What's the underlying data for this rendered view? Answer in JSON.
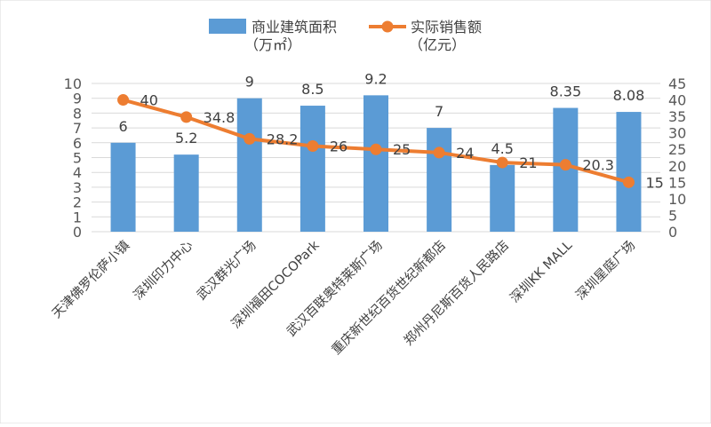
{
  "chart_data": {
    "type": "bar",
    "categories": [
      "天津佛罗伦萨小镇",
      "深圳印力中心",
      "武汉群光广场",
      "深圳福田COCOPark",
      "武汉百联奥特莱斯广场",
      "重庆新世纪百货世纪新都店",
      "郑州丹尼斯百货人民路店",
      "深圳KK MALL",
      "深圳星庭广场"
    ],
    "series": [
      {
        "name": "商业建筑面积",
        "name_line2": "（万㎡）",
        "type": "bar",
        "axis": "left",
        "color": "#5b9bd5",
        "values": [
          6,
          5.2,
          9,
          8.5,
          9.2,
          7,
          4.5,
          8.35,
          8.08
        ]
      },
      {
        "name": "实际销售额",
        "name_line2": "（亿元）",
        "type": "line",
        "axis": "right",
        "color": "#ed7d31",
        "values": [
          40,
          34.8,
          28.2,
          26,
          25,
          24,
          21,
          20.3,
          15
        ]
      }
    ],
    "y_left": {
      "min": 0,
      "max": 10,
      "step": 1
    },
    "y_right": {
      "min": 0,
      "max": 45,
      "step": 5
    },
    "grid": true,
    "legend_position": "top",
    "title": "",
    "xlabel": "",
    "ylabel": ""
  }
}
